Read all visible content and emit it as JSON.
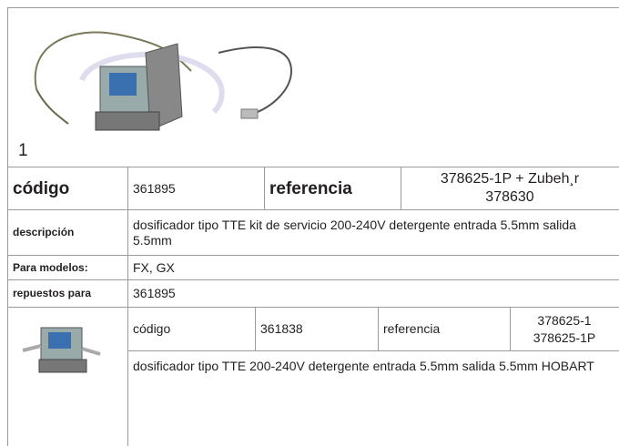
{
  "product": {
    "image_label": "1",
    "codigo_label": "código",
    "codigo": "361895",
    "referencia_label": "referencia",
    "referencia": [
      "378625-1P + Zubeh¸r",
      "378630"
    ],
    "descripcion_label": "descripción",
    "descripcion": "dosificador  tipo TTE kit de servicio 200-240V detergente entrada 5.5mm salida 5.5mm",
    "modelos_label": "Para modelos:",
    "modelos": "FX, GX",
    "repuestos_label": "repuestos para",
    "repuestos": "361895"
  },
  "spare_part": {
    "codigo_label": "código",
    "codigo": "361838",
    "referencia_label": "referencia",
    "referencia": [
      "378625-1",
      "378625-1P"
    ],
    "descripcion": "dosificador  tipo TTE 200-240V detergente entrada 5.5mm salida 5.5mm HOBART"
  }
}
